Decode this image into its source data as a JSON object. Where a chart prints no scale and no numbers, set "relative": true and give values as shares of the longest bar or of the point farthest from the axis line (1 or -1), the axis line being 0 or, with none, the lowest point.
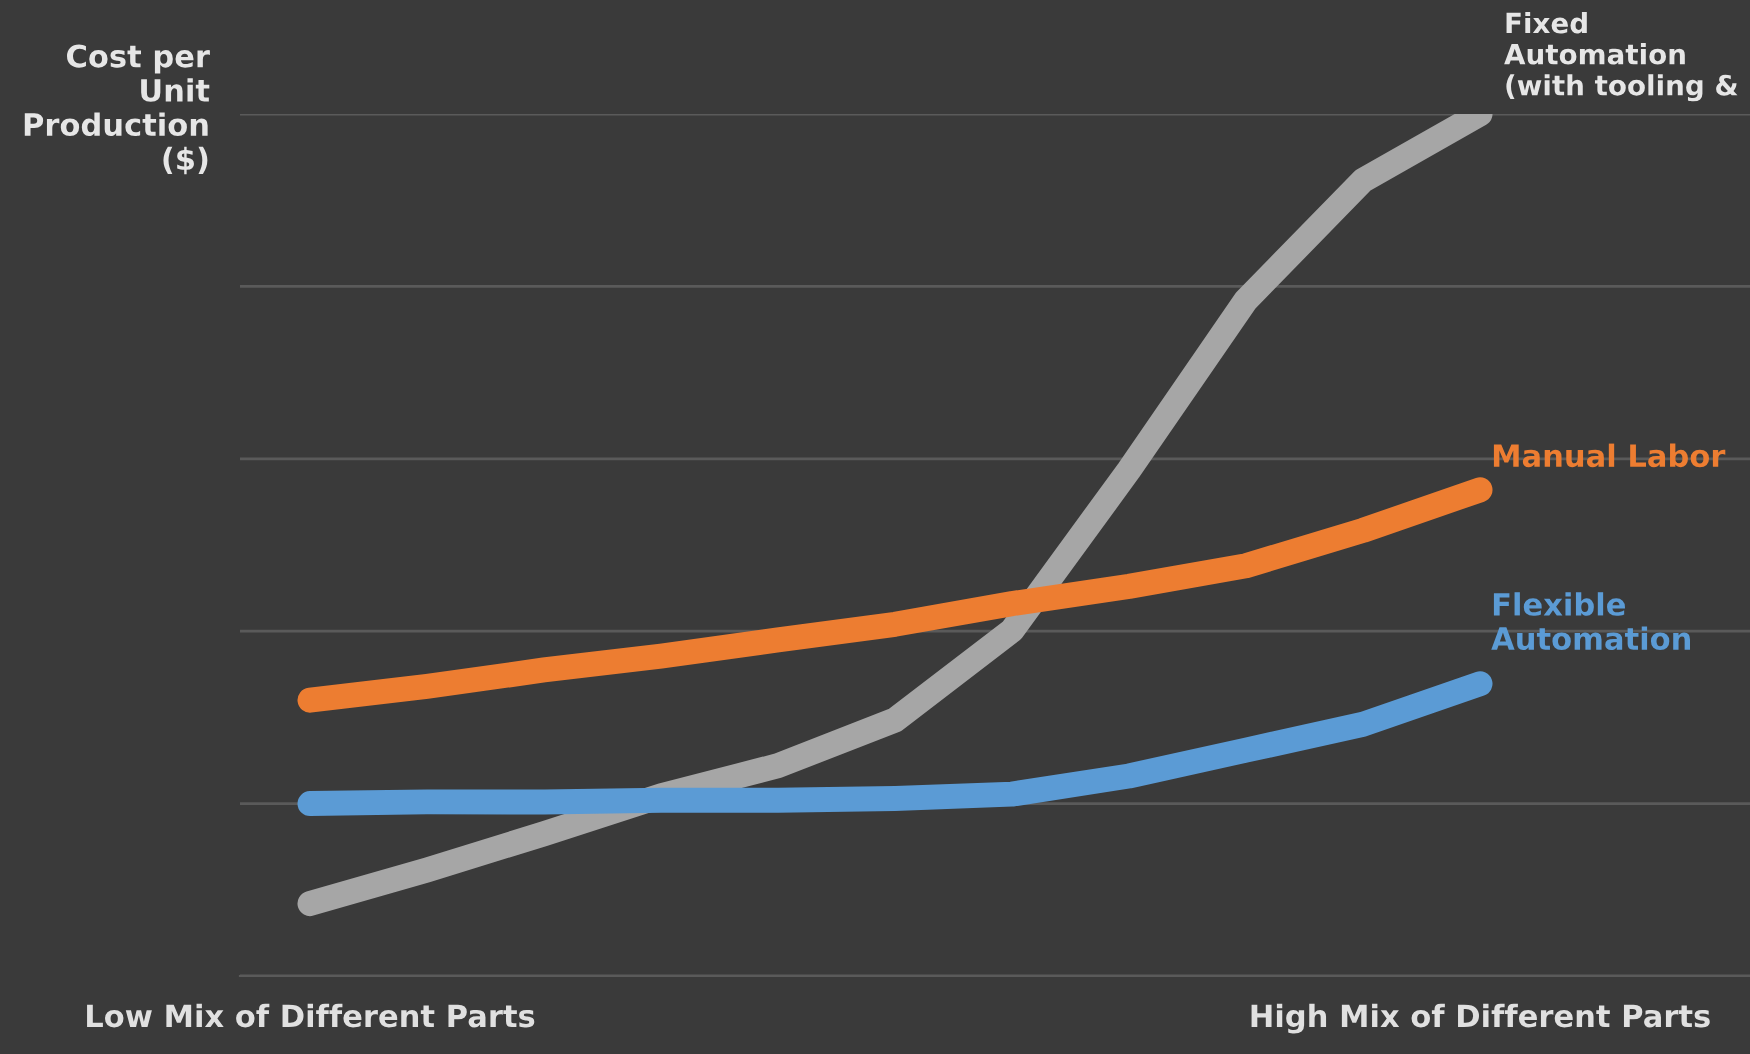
{
  "chart_data": {
    "type": "line",
    "relative": true,
    "ylabel": "Cost per Unit Production ($)",
    "categories": [
      "Low Mix of Different Parts",
      null,
      null,
      null,
      null,
      null,
      null,
      null,
      null,
      null,
      "High Mix of Different Parts"
    ],
    "series": [
      {
        "name": "Fixed Automation (with tooling &",
        "color": "#a6a6a6",
        "values": [
          0.084,
          0.123,
          0.165,
          0.209,
          0.244,
          0.297,
          0.401,
          0.587,
          0.784,
          0.923,
          1
        ]
      },
      {
        "name": "Manual Labor",
        "color": "#ed7d31",
        "values": [
          0.32,
          0.336,
          0.355,
          0.371,
          0.39,
          0.408,
          0.432,
          0.452,
          0.476,
          0.517,
          0.564
        ]
      },
      {
        "name": "Flexible Automation",
        "color": "#5b9bd5",
        "values": [
          0.2,
          0.202,
          0.202,
          0.204,
          0.204,
          0.206,
          0.211,
          0.232,
          0.262,
          0.292,
          0.339
        ]
      }
    ],
    "grid": "y",
    "legend": false,
    "line_style": "solid"
  }
}
